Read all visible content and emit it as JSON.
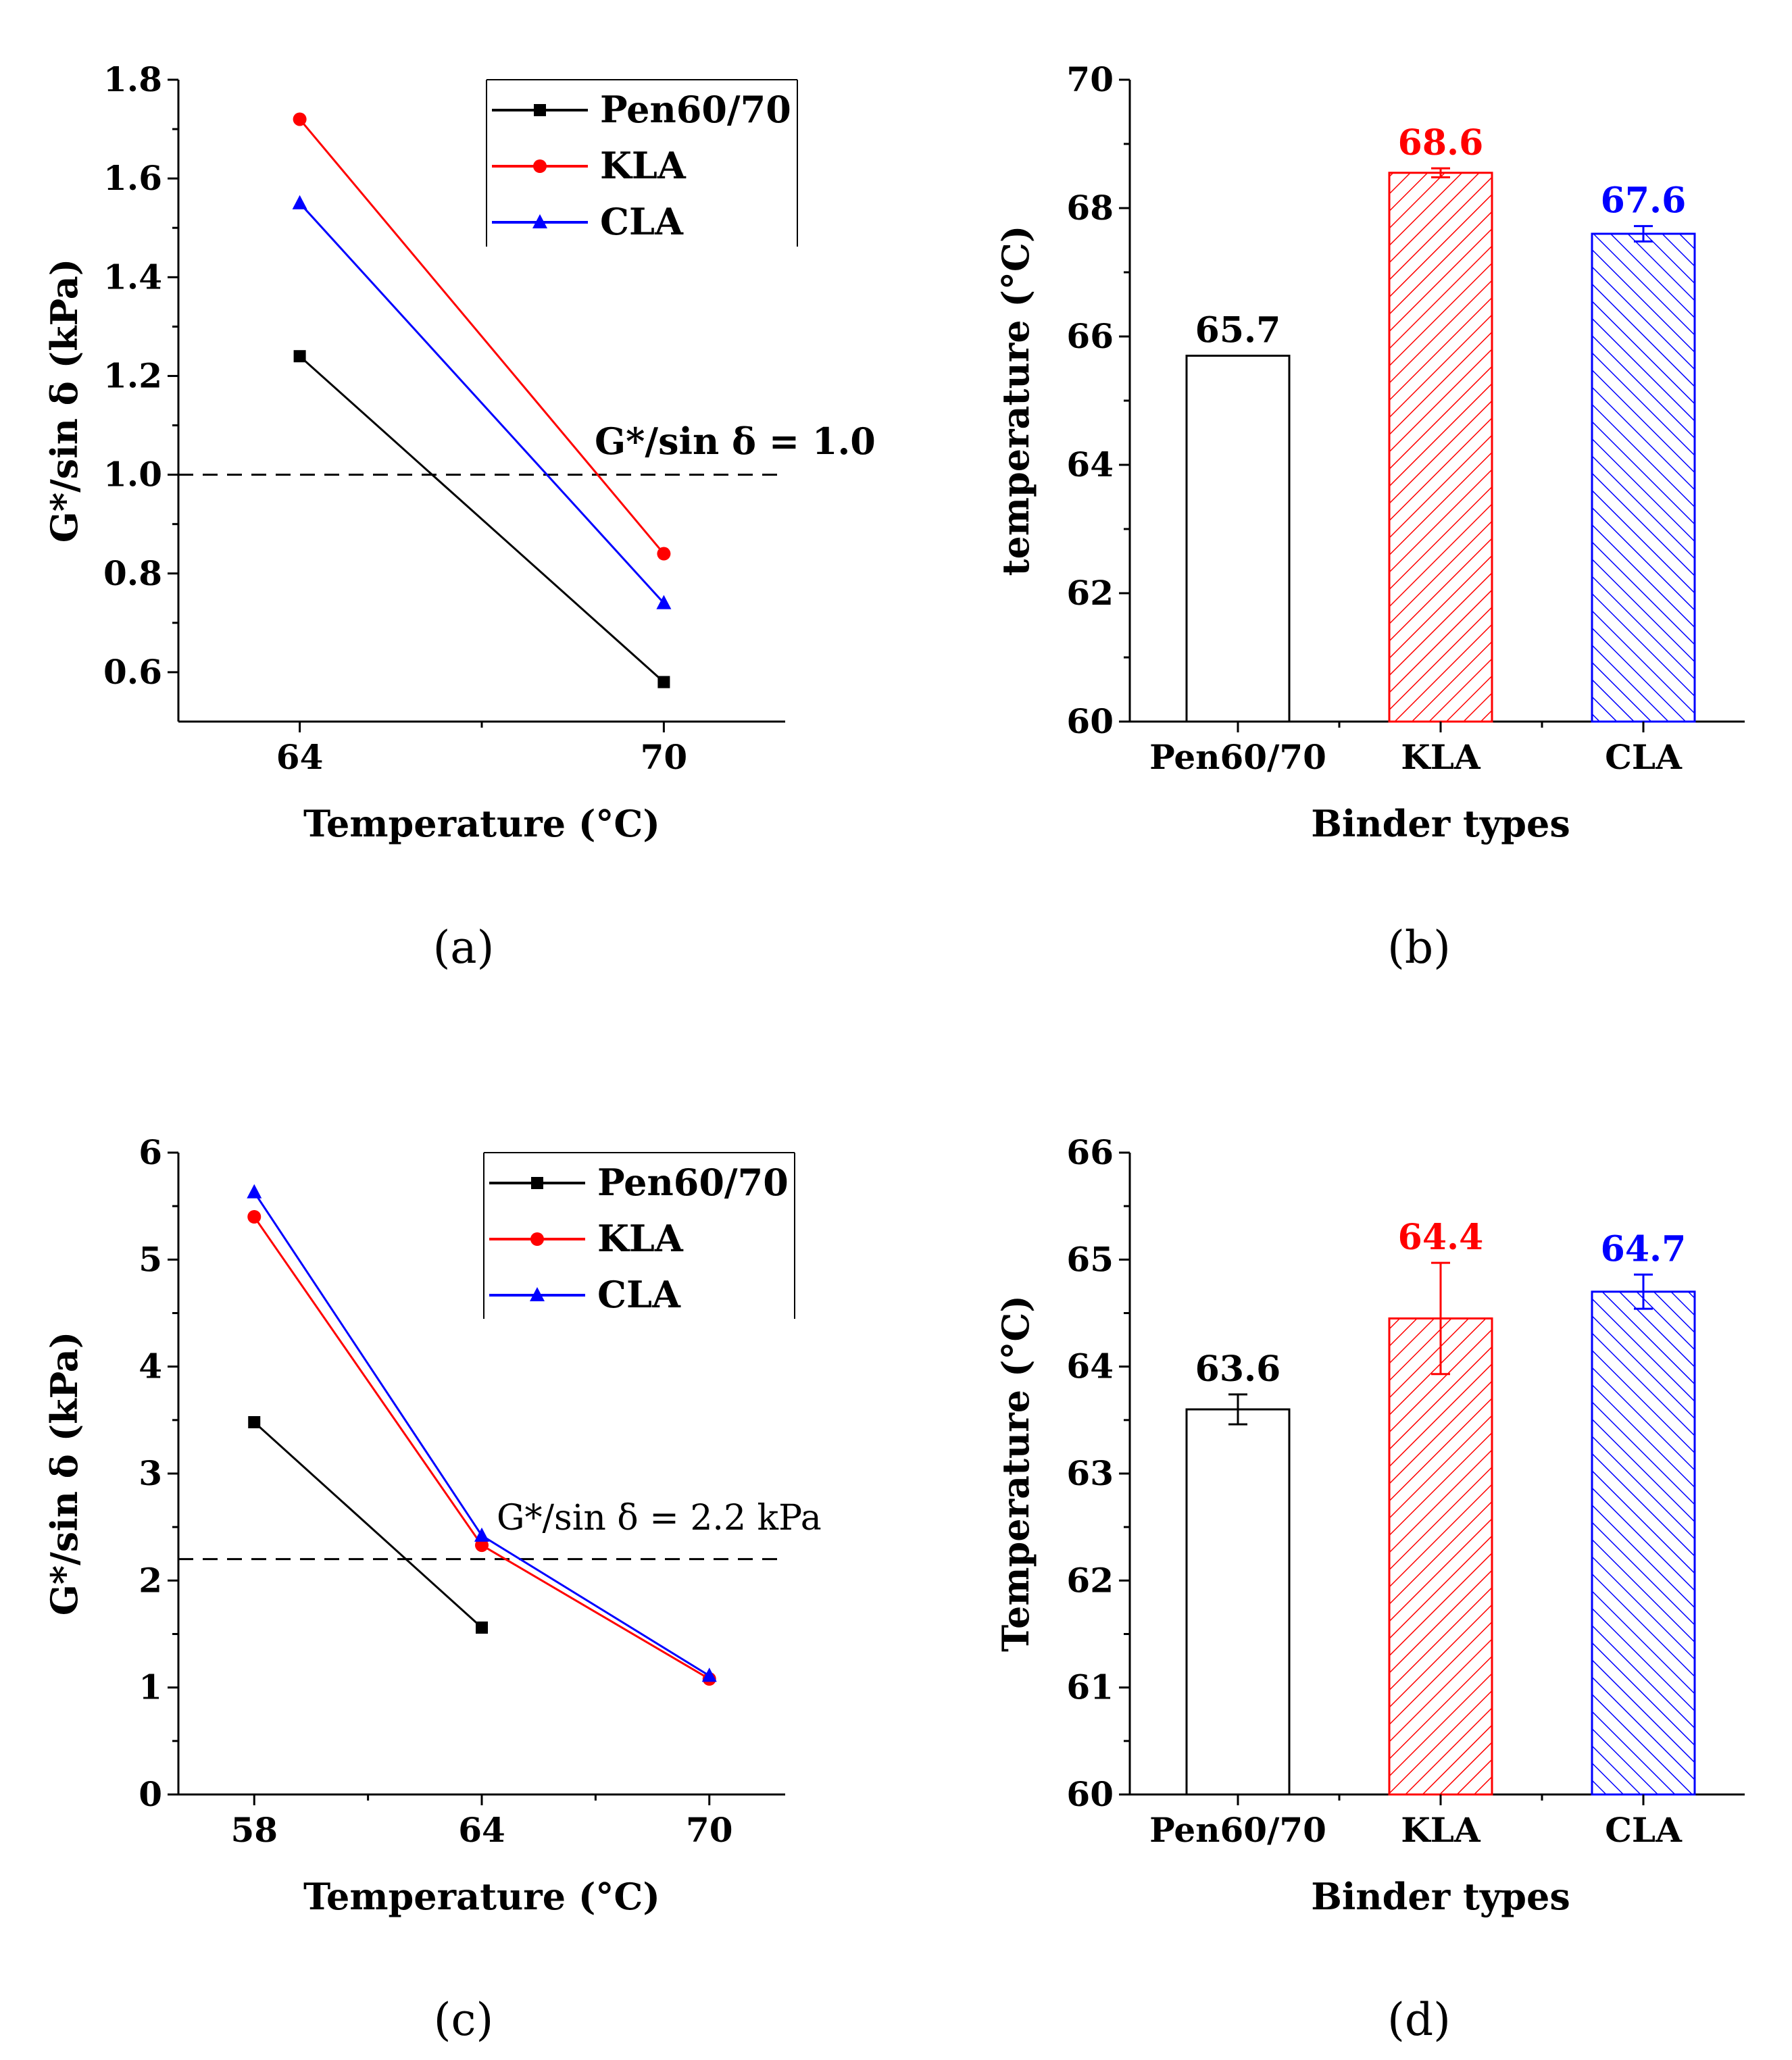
{
  "colors": {
    "pen": "#000000",
    "kla": "#ff0000",
    "cla": "#0000ff"
  },
  "chart_data": [
    {
      "panel": "(a)",
      "type": "line",
      "xlabel": "Temperature (°C)",
      "ylabel": "G*/sin δ (kPa)",
      "x": [
        64,
        70
      ],
      "xlim": [
        62,
        72
      ],
      "ylim": [
        0.5,
        1.8
      ],
      "xticks": [
        64,
        70
      ],
      "yticks": [
        0.6,
        0.8,
        1.0,
        1.2,
        1.4,
        1.6,
        1.8
      ],
      "ytick_labels": [
        "0.6",
        "0.8",
        "1.0",
        "1.2",
        "1.4",
        "1.6",
        "1.8"
      ],
      "series": [
        {
          "name": "Pen60/70",
          "marker": "square",
          "x": [
            64,
            70
          ],
          "values": [
            1.24,
            0.58
          ]
        },
        {
          "name": "KLA",
          "marker": "circle",
          "x": [
            64,
            70
          ],
          "values": [
            1.72,
            0.84
          ]
        },
        {
          "name": "CLA",
          "marker": "triangle",
          "x": [
            64,
            70
          ],
          "values": [
            1.55,
            0.74
          ]
        }
      ],
      "reference": {
        "value": 1.0,
        "label": "G*/sin δ = 1.0"
      },
      "legend": "top-right"
    },
    {
      "panel": "(b)",
      "type": "bar",
      "xlabel": "Binder types",
      "ylabel": "temperature (°C)",
      "categories": [
        "Pen60/70",
        "KLA",
        "CLA"
      ],
      "values": [
        65.7,
        68.55,
        67.6
      ],
      "value_labels": [
        "65.7",
        "68.6",
        "67.6"
      ],
      "errors": [
        0,
        0.07,
        0.12
      ],
      "ylim": [
        60,
        70
      ],
      "yticks": [
        60,
        62,
        64,
        66,
        68,
        70
      ]
    },
    {
      "panel": "(c)",
      "type": "line",
      "xlabel": "Temperature (°C)",
      "ylabel": "G*/sin δ (kPa)",
      "xlim": [
        56,
        72
      ],
      "ylim": [
        0,
        6
      ],
      "xticks": [
        58,
        64,
        70
      ],
      "yticks": [
        0,
        1,
        2,
        3,
        4,
        5,
        6
      ],
      "series": [
        {
          "name": "Pen60/70",
          "marker": "square",
          "x": [
            58,
            64
          ],
          "values": [
            3.48,
            1.56
          ]
        },
        {
          "name": "KLA",
          "marker": "circle",
          "x": [
            58,
            64,
            70
          ],
          "values": [
            5.4,
            2.33,
            1.08
          ]
        },
        {
          "name": "CLA",
          "marker": "triangle",
          "x": [
            58,
            64,
            70
          ],
          "values": [
            5.63,
            2.42,
            1.11
          ]
        }
      ],
      "reference": {
        "value": 2.2,
        "label": "G*/sin δ = 2.2 kPa"
      },
      "legend": "top-right"
    },
    {
      "panel": "(d)",
      "type": "bar",
      "xlabel": "Binder types",
      "ylabel": "Temperature (°C)",
      "categories": [
        "Pen60/70",
        "KLA",
        "CLA"
      ],
      "values": [
        63.6,
        64.45,
        64.7
      ],
      "value_labels": [
        "63.6",
        "64.4",
        "64.7"
      ],
      "errors": [
        0.14,
        0.52,
        0.16
      ],
      "ylim": [
        60,
        66
      ],
      "yticks": [
        60,
        61,
        62,
        63,
        64,
        65,
        66
      ]
    }
  ]
}
